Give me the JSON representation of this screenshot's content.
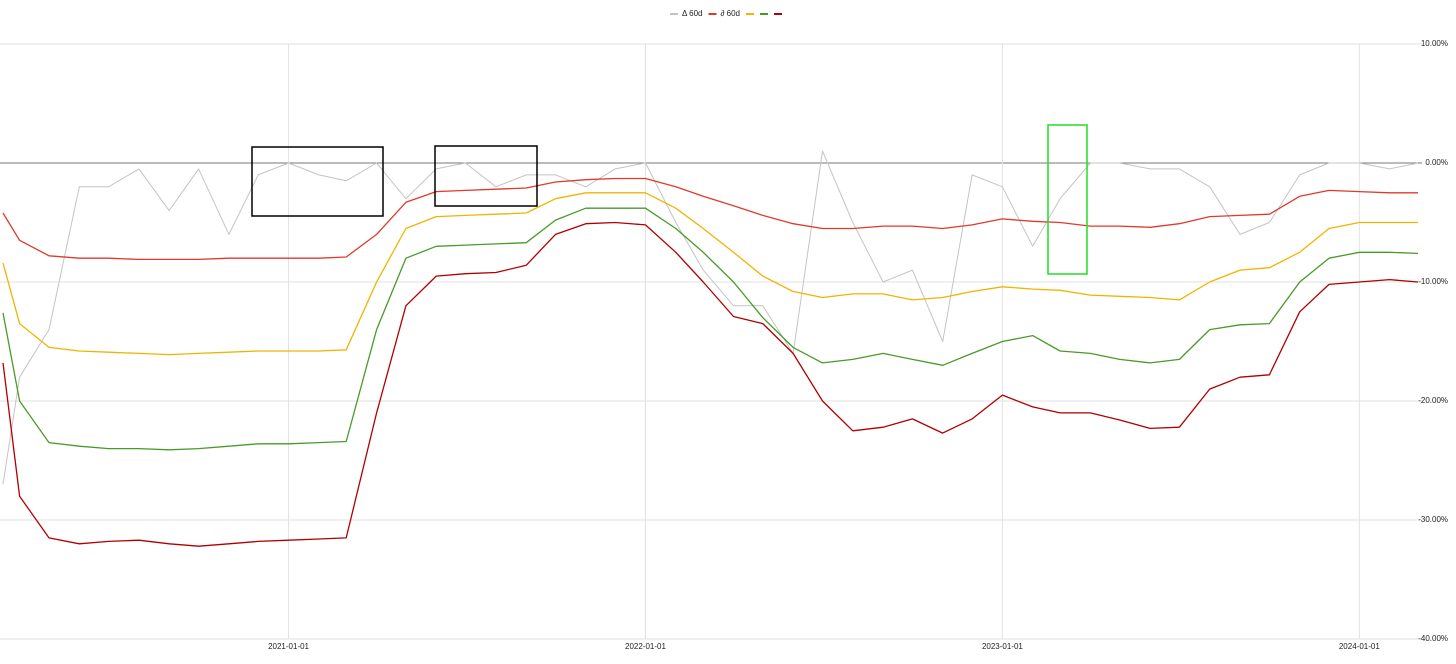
{
  "chart_data": {
    "type": "line",
    "x": [
      "2020-03-15",
      "2020-04-01",
      "2020-05-01",
      "2020-06-01",
      "2020-07-01",
      "2020-08-01",
      "2020-09-01",
      "2020-10-01",
      "2020-11-01",
      "2020-12-01",
      "2021-01-01",
      "2021-02-01",
      "2021-03-01",
      "2021-04-01",
      "2021-05-01",
      "2021-06-01",
      "2021-07-01",
      "2021-08-01",
      "2021-09-01",
      "2021-10-01",
      "2021-11-01",
      "2021-12-01",
      "2022-01-01",
      "2022-02-01",
      "2022-03-01",
      "2022-04-01",
      "2022-05-01",
      "2022-06-01",
      "2022-07-01",
      "2022-08-01",
      "2022-09-01",
      "2022-10-01",
      "2022-11-01",
      "2022-12-01",
      "2023-01-01",
      "2023-02-01",
      "2023-03-01",
      "2023-04-01",
      "2023-05-01",
      "2023-06-01",
      "2023-07-01",
      "2023-08-01",
      "2023-09-01",
      "2023-10-01",
      "2023-11-01",
      "2023-12-01",
      "2024-01-01",
      "2024-02-01",
      "2024-03-01"
    ],
    "series": [
      {
        "name": "Δ 60d",
        "color": "#c4c4c4",
        "values": [
          -27,
          -18,
          -14,
          -2,
          -2,
          -0.5,
          -4,
          -0.5,
          -6,
          -1,
          0,
          -1,
          -1.5,
          0,
          -3,
          -0.5,
          0,
          -2,
          -1,
          -1,
          -2,
          -0.5,
          0,
          -5,
          -9,
          -12,
          -12,
          -16,
          1,
          -5,
          -10,
          -9,
          -15,
          -1,
          -2,
          -7,
          -3,
          0,
          0,
          -0.5,
          -0.5,
          -2,
          -6,
          -5,
          -1,
          0,
          0,
          -0.5,
          0
        ]
      },
      {
        "name": "∂ 60d",
        "color": "#e0392b",
        "values": [
          -4.2,
          -6.5,
          -7.8,
          -8,
          -8,
          -8.1,
          -8.1,
          -8.1,
          -8,
          -8,
          -8,
          -8,
          -7.9,
          -6,
          -3.3,
          -2.4,
          -2.3,
          -2.2,
          -2.1,
          -1.6,
          -1.4,
          -1.3,
          -1.3,
          -2,
          -2.8,
          -3.6,
          -4.4,
          -5.1,
          -5.5,
          -5.5,
          -5.3,
          -5.3,
          -5.5,
          -5.2,
          -4.7,
          -4.9,
          -5,
          -5.3,
          -5.3,
          -5.4,
          -5.1,
          -4.5,
          -4.4,
          -4.3,
          -2.8,
          -2.3,
          -2.4,
          -2.5,
          -2.5
        ]
      },
      {
        "color": "#f0b400",
        "values": [
          -8.4,
          -13.5,
          -15.5,
          -15.8,
          -15.9,
          -16,
          -16.1,
          -16,
          -15.9,
          -15.8,
          -15.8,
          -15.8,
          -15.7,
          -10,
          -5.5,
          -4.5,
          -4.4,
          -4.3,
          -4.2,
          -3,
          -2.5,
          -2.5,
          -2.5,
          -3.8,
          -5.5,
          -7.5,
          -9.5,
          -10.8,
          -11.3,
          -11,
          -11,
          -11.5,
          -11.3,
          -10.8,
          -10.4,
          -10.6,
          -10.7,
          -11.1,
          -11.2,
          -11.3,
          -11.5,
          -10,
          -9,
          -8.8,
          -7.5,
          -5.5,
          -5,
          -5,
          -5
        ]
      },
      {
        "color": "#4a9a2a",
        "values": [
          -12.6,
          -20,
          -23.5,
          -23.8,
          -24,
          -24,
          -24.1,
          -24,
          -23.8,
          -23.6,
          -23.6,
          -23.5,
          -23.4,
          -14,
          -8,
          -7,
          -6.9,
          -6.8,
          -6.7,
          -4.8,
          -3.8,
          -3.8,
          -3.8,
          -5.5,
          -7.5,
          -10,
          -13,
          -15.5,
          -16.8,
          -16.5,
          -16,
          -16.5,
          -17,
          -16,
          -15,
          -14.5,
          -15.8,
          -16,
          -16.5,
          -16.8,
          -16.5,
          -14,
          -13.6,
          -13.5,
          -10,
          -8,
          -7.5,
          -7.5,
          -7.6
        ]
      },
      {
        "color": "#b00000",
        "values": [
          -16.8,
          -28,
          -31.5,
          -32,
          -31.8,
          -31.7,
          -32,
          -32.2,
          -32,
          -31.8,
          -31.7,
          -31.6,
          -31.5,
          -21,
          -12,
          -9.5,
          -9.3,
          -9.2,
          -8.6,
          -6,
          -5.1,
          -5,
          -5.2,
          -7.5,
          -10,
          -12.9,
          -13.5,
          -16,
          -20,
          -22.5,
          -22.2,
          -21.5,
          -22.7,
          -21.5,
          -19.5,
          -20.5,
          -21,
          -21,
          -21.6,
          -22.3,
          -22.2,
          -19,
          -18,
          -17.8,
          -12.5,
          -10.2,
          -10,
          -9.8,
          -10
        ]
      }
    ],
    "xlim": [
      "2020-03-15",
      "2024-03-01"
    ],
    "xticks": [
      "2021-01-01",
      "2022-01-01",
      "2023-01-01",
      "2024-01-01"
    ],
    "ylim": [
      -40,
      10
    ],
    "yticks": [
      {
        "value": 10,
        "label": "10.00%"
      },
      {
        "value": 0,
        "label": "0.00%"
      },
      {
        "value": -10,
        "label": "-10.00%"
      },
      {
        "value": -20,
        "label": "-20.00%"
      },
      {
        "value": -30,
        "label": "-30.00%"
      },
      {
        "value": -40,
        "label": "-40.00%"
      }
    ],
    "grid": true,
    "legend": "top"
  }
}
